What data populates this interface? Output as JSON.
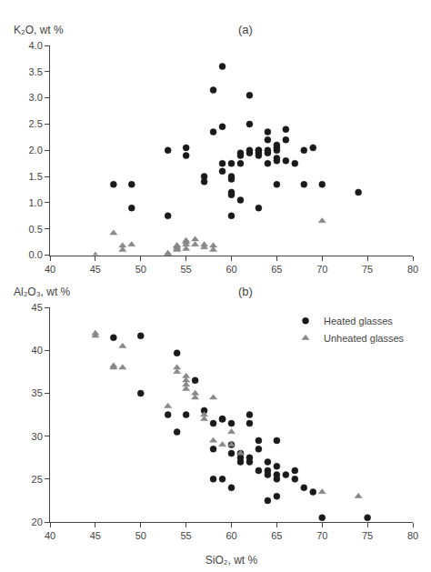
{
  "chart_data": [
    {
      "type": "scatter",
      "title": "(a)",
      "ylabel": "K₂O, wt %",
      "xlim": [
        40,
        80
      ],
      "ylim": [
        0,
        4.0
      ],
      "xticks": [
        40,
        45,
        50,
        55,
        60,
        65,
        70,
        75,
        80
      ],
      "yticks": [
        {
          "value": 0,
          "label": "0.0"
        },
        0.5,
        {
          "value": 1.0,
          "label": "1.0"
        },
        1.5,
        {
          "value": 2.0,
          "label": "2.0"
        },
        2.5,
        {
          "value": 3.0,
          "label": "3.0"
        },
        3.5,
        {
          "value": 4.0,
          "label": "4.0"
        }
      ],
      "grid": false,
      "series": [
        {
          "color": "#1a1a1a",
          "marker": "circle",
          "x": [
            47,
            49,
            49,
            53,
            53,
            55,
            55,
            57,
            57,
            58,
            58,
            59,
            59,
            59,
            59,
            60,
            60,
            60,
            60,
            60,
            60,
            61,
            61,
            61,
            61,
            62,
            62,
            62,
            62,
            63,
            63,
            63,
            63,
            63,
            64,
            64,
            64,
            64,
            64,
            65,
            65,
            65,
            65,
            65,
            65,
            66,
            66,
            66,
            67,
            68,
            68,
            69,
            70,
            74
          ],
          "values": [
            1.35,
            0.9,
            1.35,
            2.0,
            0.75,
            2.05,
            1.9,
            1.5,
            1.4,
            3.15,
            2.35,
            3.6,
            2.45,
            1.75,
            1.6,
            1.75,
            1.5,
            1.45,
            1.2,
            1.15,
            0.75,
            1.9,
            1.95,
            1.75,
            1.05,
            3.05,
            2.5,
            2.0,
            1.95,
            2.0,
            2.0,
            1.95,
            1.9,
            0.9,
            2.35,
            2.2,
            2.0,
            1.95,
            1.75,
            2.1,
            2.05,
            2.0,
            1.85,
            1.8,
            1.35,
            2.4,
            2.2,
            1.8,
            1.75,
            2.0,
            1.35,
            2.05,
            1.35,
            1.2
          ]
        },
        {
          "color": "#888888",
          "marker": "triangle-up",
          "x": [
            45,
            47,
            48,
            48,
            49,
            53,
            53,
            53,
            54,
            54,
            54,
            54,
            54,
            55,
            55,
            55,
            55,
            56,
            56,
            57,
            57,
            58,
            58,
            70
          ],
          "values": [
            0.0,
            0.42,
            0.18,
            0.1,
            0.2,
            0.03,
            0.03,
            0.0,
            0.18,
            0.18,
            0.15,
            0.12,
            0.1,
            0.28,
            0.25,
            0.2,
            0.12,
            0.3,
            0.2,
            0.2,
            0.15,
            0.18,
            0.1,
            0.65
          ]
        }
      ]
    },
    {
      "type": "scatter",
      "title": "(b)",
      "ylabel": "Al₂O₃, wt %",
      "xlabel": "SiO₂, wt %",
      "xlim": [
        40,
        80
      ],
      "ylim": [
        20,
        45
      ],
      "xticks": [
        40,
        45,
        50,
        55,
        60,
        65,
        70,
        75,
        80
      ],
      "yticks": [
        20,
        25,
        30,
        35,
        40,
        45
      ],
      "grid": false,
      "legend": "upper right",
      "series": [
        {
          "name": "Heated glasses",
          "color": "#1a1a1a",
          "marker": "circle",
          "x": [
            47,
            50,
            50,
            53,
            54,
            54,
            55,
            56,
            57,
            58,
            58,
            58,
            59,
            59,
            59,
            60,
            60,
            60,
            60,
            61,
            61,
            61,
            62,
            62,
            62,
            62,
            63,
            63,
            63,
            64,
            64,
            64,
            64,
            65,
            65,
            65,
            65,
            65,
            66,
            67,
            67,
            68,
            69,
            70,
            75
          ],
          "values": [
            41.5,
            35.0,
            41.7,
            32.5,
            39.7,
            30.5,
            32.5,
            36.5,
            33.0,
            31.5,
            28.5,
            25.0,
            32.0,
            32.0,
            25.0,
            31.5,
            29.0,
            28.0,
            24.0,
            28.0,
            27.5,
            27.0,
            32.5,
            31.5,
            27.5,
            27.0,
            29.5,
            28.5,
            26.0,
            27.0,
            26.0,
            25.5,
            22.5,
            29.5,
            26.5,
            25.5,
            25.0,
            23.0,
            25.5,
            26.0,
            25.0,
            24.0,
            23.5,
            20.5,
            20.5
          ]
        },
        {
          "name": "Unheated glasses",
          "color": "#888888",
          "marker": "triangle-up",
          "x": [
            45,
            45,
            47,
            47,
            48,
            48,
            53,
            54,
            54,
            55,
            55,
            55,
            55,
            56,
            56,
            57,
            57,
            58,
            58,
            59,
            60,
            60,
            61,
            70,
            74
          ],
          "values": [
            42.0,
            41.7,
            38.2,
            38.0,
            40.5,
            38.0,
            33.5,
            38.0,
            37.5,
            37.0,
            36.5,
            35.5,
            36.0,
            35.0,
            34.5,
            32.5,
            32.0,
            34.5,
            29.5,
            29.0,
            30.5,
            29.0,
            28.0,
            23.5,
            23.0
          ]
        }
      ]
    }
  ]
}
